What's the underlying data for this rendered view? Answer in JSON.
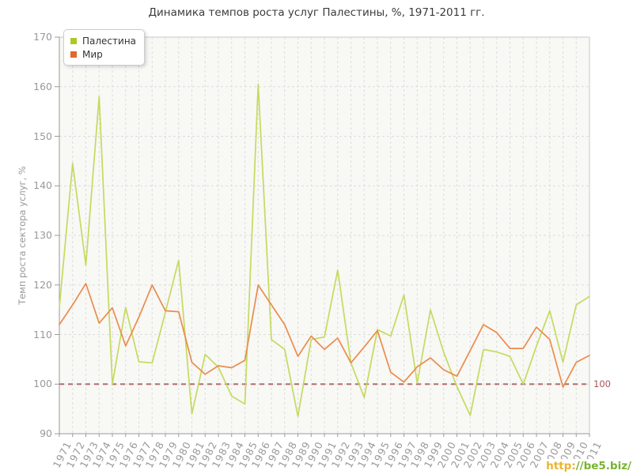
{
  "title": "Динамика темпов роста услуг Палестины, %, 1971-2011 гг.",
  "y_axis_label": "Темп роста сектора услуг, %",
  "reference_label": "100",
  "watermark": {
    "part1": "http:",
    "part2": "//be5.biz/"
  },
  "legend": [
    {
      "label": "Палестина",
      "color": "#abc929"
    },
    {
      "label": "Мир",
      "color": "#e0682a"
    }
  ],
  "colors": {
    "palestine_line": "#c5da5f",
    "world_line": "#ea8c4d",
    "reference_line": "#b26d6d",
    "grid": "#dcdcdc",
    "plot_border": "#c8c8c8",
    "plot_background": "#f8f8f5",
    "axis": "#999999"
  },
  "chart_data": {
    "type": "line",
    "title": "Динамика темпов роста услуг Палестины, %, 1971-2011 гг.",
    "xlabel": "",
    "ylabel": "Темп роста сектора услуг, %",
    "ylim": [
      90,
      170
    ],
    "yticks": [
      90,
      100,
      110,
      120,
      130,
      140,
      150,
      160,
      170
    ],
    "grid": true,
    "legend_position": "top-left",
    "reference_line": 100,
    "x": [
      1971,
      1972,
      1973,
      1974,
      1975,
      1976,
      1977,
      1978,
      1979,
      1980,
      1981,
      1982,
      1983,
      1984,
      1985,
      1986,
      1987,
      1988,
      1989,
      1990,
      1991,
      1992,
      1993,
      1994,
      1995,
      1996,
      1997,
      1998,
      1999,
      2000,
      2001,
      2002,
      2003,
      2004,
      2005,
      2006,
      2007,
      2008,
      2009,
      2010,
      2011
    ],
    "series": [
      {
        "name": "Палестина",
        "color": "#c5da5f",
        "values": [
          115.5,
          144.5,
          124,
          158,
          100,
          115.5,
          104.5,
          104.3,
          114.5,
          125,
          94,
          106,
          103.4,
          97.6,
          96,
          160.5,
          109,
          107,
          93.5,
          109,
          109.5,
          123,
          104.3,
          97.3,
          111,
          109.7,
          118,
          100.2,
          115,
          106.4,
          99.5,
          93.7,
          107,
          106.5,
          105.6,
          100,
          107.7,
          114.8,
          104.4,
          116,
          117.7
        ]
      },
      {
        "name": "Мир",
        "color": "#ea8c4d",
        "values": [
          112,
          116,
          120.3,
          112.3,
          115.4,
          107.7,
          113.5,
          120,
          114.8,
          114.6,
          104.4,
          102,
          103.7,
          103.3,
          104.8,
          120,
          116,
          112,
          105.6,
          109.7,
          107,
          109.3,
          104.3,
          107.5,
          110.8,
          102.4,
          100.4,
          103.5,
          105.3,
          102.9,
          101.6,
          106.8,
          112,
          110.4,
          107.2,
          107.2,
          111.5,
          109,
          99.4,
          104.4,
          105.8
        ]
      }
    ]
  }
}
